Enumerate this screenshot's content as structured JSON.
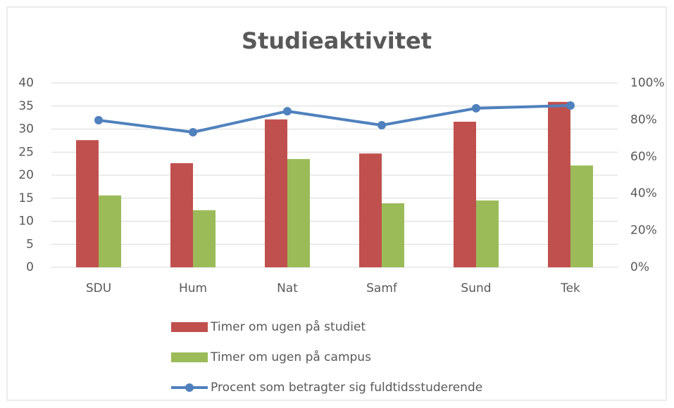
{
  "chart_data": {
    "type": "bar_line",
    "title": "Studieaktivitet",
    "categories": [
      "SDU",
      "Hum",
      "Nat",
      "Samf",
      "Sund",
      "Tek"
    ],
    "series": [
      {
        "name": "Timer om ugen på studiet",
        "color": "#c0504d",
        "type": "bar",
        "values": [
          27.6,
          22.6,
          32.1,
          24.7,
          31.6,
          35.9
        ]
      },
      {
        "name": "Timer om ugen på campus",
        "color": "#9bbb59",
        "type": "bar",
        "values": [
          15.6,
          12.4,
          23.5,
          13.9,
          14.5,
          22.1
        ]
      },
      {
        "name": "Procent som betragter sig fuldtidsstuderende",
        "color": "#4f81bd",
        "type": "line",
        "axis": "y2",
        "values": [
          79.8,
          73.3,
          84.7,
          77.1,
          86.3,
          87.8
        ]
      }
    ],
    "ylim": [
      0,
      40
    ],
    "yticks": [
      0,
      5,
      10,
      15,
      20,
      25,
      30,
      35,
      40
    ],
    "y2lim": [
      0,
      100
    ],
    "y2ticks": [
      {
        "value": 0,
        "label": "0%"
      },
      {
        "value": 20,
        "label": "20%"
      },
      {
        "value": 40,
        "label": "40%"
      },
      {
        "value": 60,
        "label": "60%"
      },
      {
        "value": 80,
        "label": "80%"
      },
      {
        "value": 100,
        "label": "100%"
      }
    ],
    "grid": true,
    "legend": "bottom"
  }
}
